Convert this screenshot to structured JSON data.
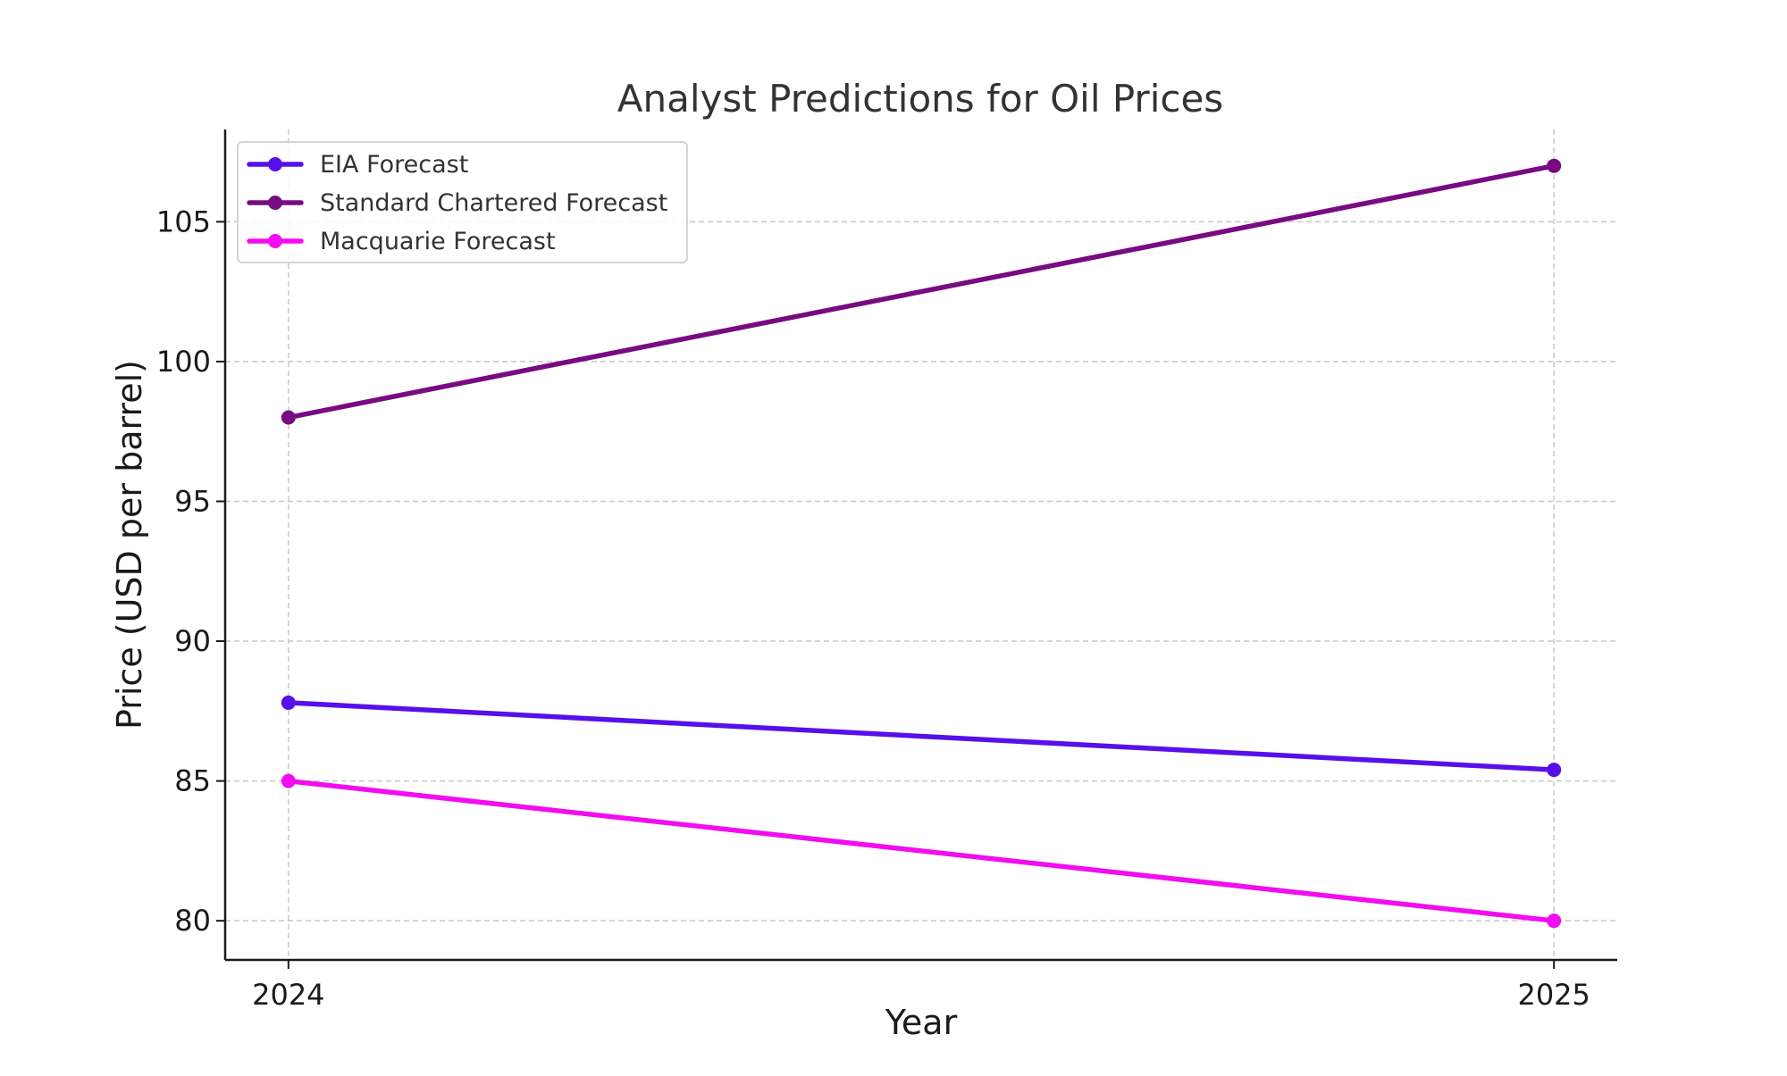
{
  "chart_data": {
    "type": "line",
    "title": "Analyst Predictions for Oil Prices",
    "xlabel": "Year",
    "ylabel": "Price (USD per barrel)",
    "categories": [
      "2024",
      "2025"
    ],
    "x": [
      2024,
      2025
    ],
    "xlim": [
      2023.95,
      2025.05
    ],
    "ylim": [
      78.6,
      108.3
    ],
    "yticks": [
      80,
      85,
      90,
      95,
      100,
      105
    ],
    "grid": true,
    "legend_position": "top-left",
    "series": [
      {
        "name": "EIA Forecast",
        "color": "#5610ea",
        "values": [
          87.8,
          85.4
        ]
      },
      {
        "name": "Standard Chartered Forecast",
        "color": "#780a82",
        "values": [
          98.0,
          107.0
        ]
      },
      {
        "name": "Macquarie Forecast",
        "color": "#f20cf0",
        "values": [
          85.0,
          80.0
        ]
      }
    ]
  }
}
